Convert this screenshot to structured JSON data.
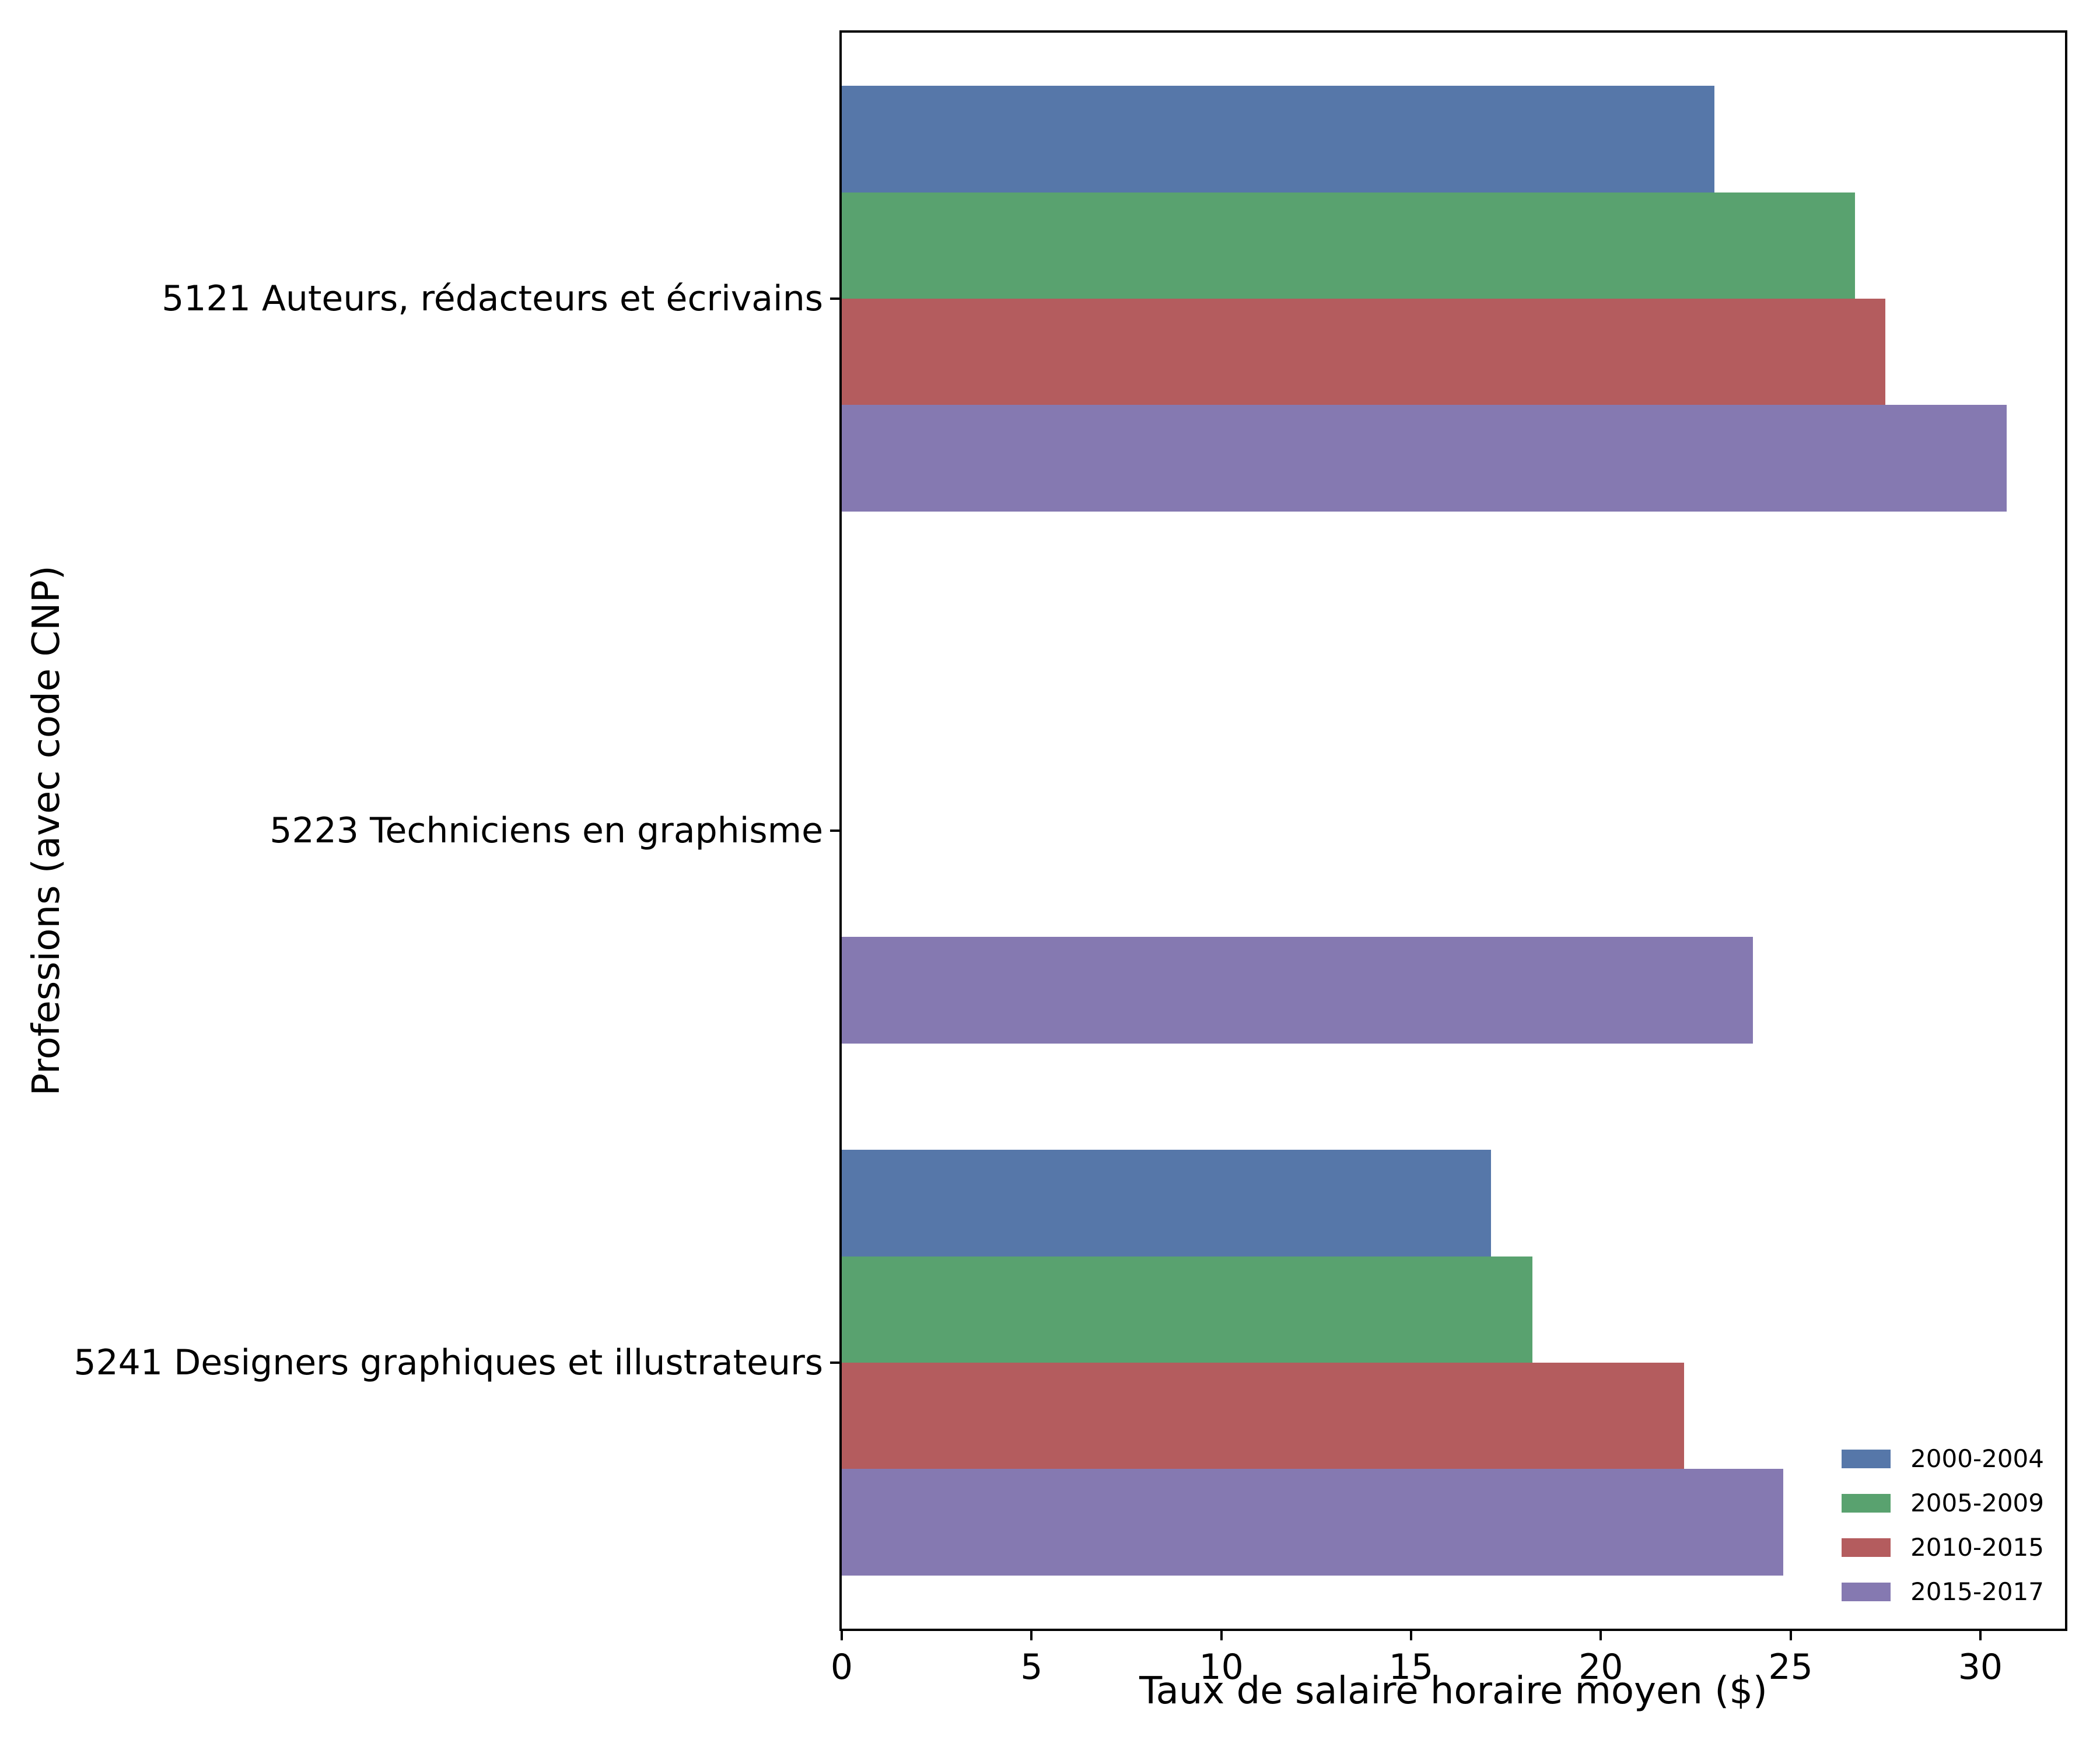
{
  "chart_data": {
    "type": "bar",
    "orientation": "horizontal",
    "title": "",
    "xlabel": "Taux de salaire horaire moyen ($)",
    "ylabel": "Professions (avec code CNP)",
    "categories": [
      "5121 Auteurs, rédacteurs et écrivains",
      "5223 Techniciens en graphisme",
      "5241 Designers graphiques et illustrateurs"
    ],
    "series": [
      {
        "name": "2000-2004",
        "color": "#5677A9",
        "values": [
          23.0,
          null,
          17.1
        ]
      },
      {
        "name": "2005-2009",
        "color": "#59A26F",
        "values": [
          26.7,
          null,
          18.2
        ]
      },
      {
        "name": "2010-2015",
        "color": "#B45C5E",
        "values": [
          27.5,
          null,
          22.2
        ]
      },
      {
        "name": "2015-2017",
        "color": "#8579B1",
        "values": [
          30.7,
          24.0,
          24.8
        ]
      }
    ],
    "x_ticks": [
      0,
      5,
      10,
      15,
      20,
      25,
      30
    ],
    "xlim": [
      0,
      32.23
    ],
    "grid": false,
    "legend_position": "lower-right",
    "bar_group_fraction": 0.8
  }
}
